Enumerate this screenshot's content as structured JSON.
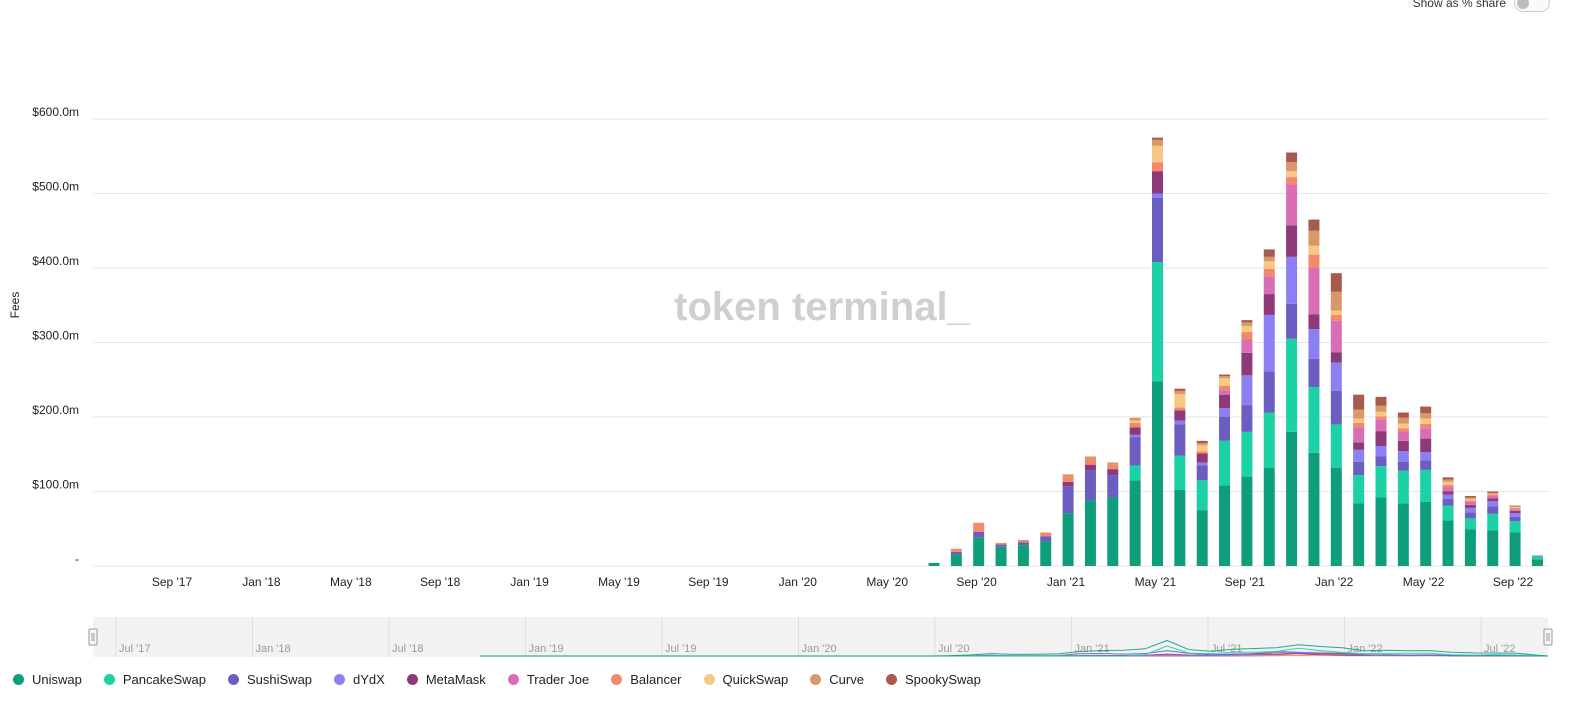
{
  "toggle": {
    "label": "Show as % share",
    "on": false
  },
  "watermark": "token terminal_",
  "navigator": {
    "labels": [
      "Jul '17",
      "Jan '18",
      "Jul '18",
      "Jan '19",
      "Jul '19",
      "Jan '20",
      "Jul '20",
      "Jan '21",
      "Jul '21",
      "Jan '22",
      "Jul '22"
    ]
  },
  "chart_data": {
    "type": "bar",
    "stacked": true,
    "ylabel": "Fees",
    "xlabel": "",
    "ylim": [
      0,
      600
    ],
    "yticks": [
      0,
      100,
      200,
      300,
      400,
      500,
      600
    ],
    "ytick_labels": [
      "-",
      "$100.0m",
      "$200.0m",
      "$300.0m",
      "$400.0m",
      "$500.0m",
      "$600.0m"
    ],
    "xtick_labels": [
      "Sep '17",
      "Jan '18",
      "May '18",
      "Sep '18",
      "Jan '19",
      "May '19",
      "Sep '19",
      "Jan '20",
      "May '20",
      "Sep '20",
      "Jan '21",
      "May '21",
      "Sep '21",
      "Jan '22",
      "May '22",
      "Sep '22"
    ],
    "grid": true,
    "legend_position": "bottom-left",
    "categories": [
      "Jul '20",
      "Aug '20",
      "Sep '20",
      "Oct '20",
      "Nov '20",
      "Dec '20",
      "Jan '21",
      "Feb '21",
      "Mar '21",
      "Apr '21",
      "May '21",
      "Jun '21",
      "Jul '21",
      "Aug '21",
      "Sep '21",
      "Oct '21",
      "Nov '21",
      "Dec '21",
      "Jan '22",
      "Feb '22",
      "Mar '22",
      "Apr '22",
      "May '22",
      "Jun '22",
      "Jul '22",
      "Aug '22",
      "Sep '22",
      "Oct '22"
    ],
    "series": [
      {
        "name": "Uniswap",
        "color": "#0f9e7b",
        "values": [
          4,
          16,
          38,
          26,
          28,
          33,
          71,
          88,
          92,
          115,
          248,
          102,
          75,
          108,
          120,
          132,
          180,
          152,
          132,
          84,
          92,
          84,
          86,
          61,
          49,
          48,
          45,
          9
        ]
      },
      {
        "name": "PancakeSwap",
        "color": "#1bd1a5",
        "values": [
          0,
          0,
          0,
          0,
          0,
          0,
          0,
          0,
          0,
          20,
          160,
          46,
          40,
          60,
          60,
          74,
          125,
          88,
          58,
          38,
          42,
          44,
          43,
          20,
          15,
          22,
          15,
          4
        ]
      },
      {
        "name": "SushiSwap",
        "color": "#6a5fc1",
        "values": [
          0,
          3,
          8,
          3,
          4,
          7,
          36,
          40,
          30,
          38,
          86,
          42,
          20,
          32,
          36,
          55,
          47,
          38,
          45,
          18,
          13,
          12,
          13,
          9,
          8,
          10,
          6,
          1
        ]
      },
      {
        "name": "dYdX",
        "color": "#8b7ff3",
        "values": [
          0,
          0,
          0,
          0,
          0,
          0,
          0,
          0,
          0,
          3,
          6,
          5,
          4,
          12,
          40,
          76,
          63,
          40,
          38,
          16,
          14,
          14,
          11,
          6,
          6,
          7,
          5,
          0
        ]
      },
      {
        "name": "MetaMask",
        "color": "#8e3a78",
        "values": [
          0,
          0,
          0,
          0,
          0,
          0,
          6,
          8,
          8,
          10,
          30,
          14,
          12,
          18,
          30,
          28,
          42,
          20,
          14,
          10,
          20,
          14,
          18,
          4,
          4,
          4,
          3,
          0
        ]
      },
      {
        "name": "Trader Joe",
        "color": "#d96eb6",
        "values": [
          0,
          0,
          0,
          0,
          0,
          0,
          0,
          0,
          0,
          0,
          0,
          0,
          0,
          6,
          18,
          24,
          55,
          62,
          42,
          20,
          16,
          13,
          14,
          6,
          4,
          3,
          2,
          0
        ]
      },
      {
        "name": "Balancer",
        "color": "#f5886a",
        "values": [
          0,
          4,
          12,
          2,
          3,
          5,
          6,
          7,
          6,
          6,
          12,
          4,
          3,
          6,
          10,
          10,
          10,
          18,
          8,
          6,
          4,
          4,
          6,
          3,
          2,
          2,
          2,
          0
        ]
      },
      {
        "name": "QuickSwap",
        "color": "#f9c784",
        "values": [
          0,
          0,
          0,
          0,
          0,
          0,
          0,
          0,
          0,
          3,
          22,
          18,
          8,
          10,
          8,
          10,
          8,
          12,
          6,
          6,
          6,
          6,
          7,
          4,
          2,
          1,
          1,
          0
        ]
      },
      {
        "name": "Curve",
        "color": "#d9976a",
        "values": [
          0,
          0,
          0,
          0,
          0,
          0,
          4,
          4,
          3,
          4,
          8,
          4,
          3,
          3,
          5,
          6,
          12,
          20,
          25,
          12,
          8,
          8,
          7,
          3,
          2,
          1,
          1,
          0
        ]
      },
      {
        "name": "SpookySwap",
        "color": "#a85a4d",
        "values": [
          0,
          0,
          0,
          0,
          0,
          0,
          0,
          0,
          0,
          0,
          3,
          3,
          3,
          2,
          3,
          10,
          13,
          15,
          25,
          20,
          12,
          7,
          9,
          3,
          2,
          2,
          1,
          0
        ]
      }
    ]
  }
}
